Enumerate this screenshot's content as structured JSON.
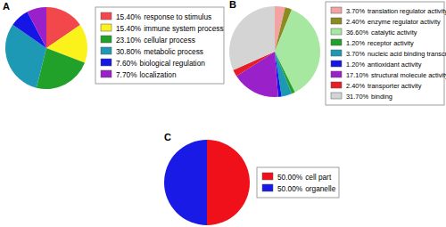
{
  "chart_data": [
    {
      "type": "pie",
      "title": "A",
      "categories": [
        "response to stimulus",
        "immune system process",
        "cellular process",
        "metabolic process",
        "biological regulation",
        "localization"
      ],
      "values": [
        15.4,
        15.4,
        23.1,
        30.8,
        7.6,
        7.7
      ],
      "value_labels": [
        "15.40%",
        "15.40%",
        "23.10%",
        "30.80%",
        "7.60%",
        "7.70%"
      ],
      "colors": [
        "#f2474b",
        "#fbf21b",
        "#21a02a",
        "#1d98b5",
        "#1515e6",
        "#9a21c9"
      ]
    },
    {
      "type": "pie",
      "title": "B",
      "categories": [
        "translation regulator activity",
        "enzyme regulator activity",
        "catalytic activity",
        "receptor activity",
        "nucleic acid binding transcription factor activity",
        "antioxidant activity",
        "structural molecule activity",
        "transporter activity",
        "binding"
      ],
      "values": [
        3.7,
        2.4,
        36.6,
        1.2,
        3.7,
        1.2,
        17.1,
        2.4,
        31.7
      ],
      "value_labels": [
        "3.70%",
        "2.40%",
        "36.60%",
        "1.20%",
        "3.70%",
        "1.20%",
        "17.10%",
        "2.40%",
        "31.70%"
      ],
      "colors": [
        "#f4a3a3",
        "#8c8b1f",
        "#a6e8a0",
        "#21a02a",
        "#1d98b5",
        "#1515e6",
        "#9a21c9",
        "#e61e26",
        "#d4d4d4"
      ]
    },
    {
      "type": "pie",
      "title": "C",
      "categories": [
        "cell part",
        "organelle"
      ],
      "values": [
        50,
        50
      ],
      "value_labels": [
        "50.00%",
        "50.00%"
      ],
      "colors": [
        "#f0101a",
        "#1a1ae6"
      ]
    }
  ]
}
